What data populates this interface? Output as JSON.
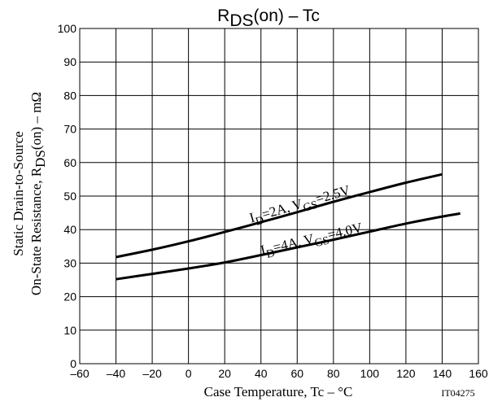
{
  "chart_data": {
    "type": "line",
    "title": {
      "main": "R",
      "sub": "DS",
      "rest": "(on)  –  Tc"
    },
    "xlabel": "Case Temperature, Tc  –  °C",
    "ylabel_line1": "Static Drain-to-Source",
    "ylabel_line2": {
      "main": "On-State Resistance, R",
      "sub": "DS",
      "rest": "(on)  –  mΩ"
    },
    "xlim": [
      -60,
      160
    ],
    "ylim": [
      0,
      100
    ],
    "x_ticks": [
      -60,
      -40,
      -20,
      0,
      20,
      40,
      60,
      80,
      100,
      120,
      140,
      160
    ],
    "y_ticks": [
      0,
      10,
      20,
      30,
      40,
      50,
      60,
      70,
      80,
      90,
      100
    ],
    "grid": true,
    "code_label": "IT04275",
    "series": [
      {
        "label": {
          "p1": "I",
          "s1": "D",
          "p2": "=2A, V",
          "s2": "GS",
          "p3": "=2.5V"
        },
        "x": [
          -40,
          -20,
          0,
          20,
          40,
          60,
          80,
          100,
          120,
          140
        ],
        "y": [
          31.8,
          34.0,
          36.5,
          39.3,
          42.2,
          45.2,
          48.3,
          51.2,
          54.0,
          56.5
        ]
      },
      {
        "label": {
          "p1": "I",
          "s1": "D",
          "p2": "=4A, V",
          "s2": "GS",
          "p3": "=4.0V"
        },
        "x": [
          -40,
          -20,
          0,
          20,
          40,
          60,
          80,
          100,
          120,
          140,
          150
        ],
        "y": [
          25.2,
          26.8,
          28.4,
          30.2,
          32.4,
          34.7,
          37.0,
          39.4,
          41.8,
          43.9,
          44.8
        ]
      }
    ]
  }
}
